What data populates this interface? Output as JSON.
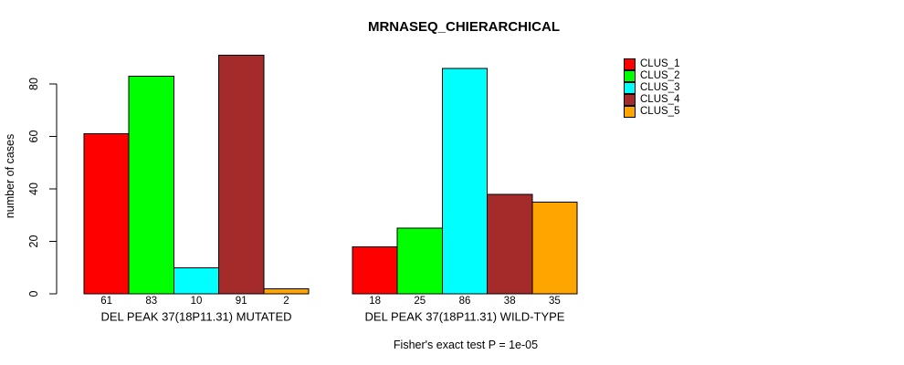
{
  "chart_data": {
    "type": "bar",
    "title": "MRNASEQ_CHIERARCHICAL",
    "ylabel": "number of cases",
    "xlabel": "",
    "ylim": [
      0,
      91
    ],
    "yticks": [
      0,
      20,
      40,
      60,
      80
    ],
    "grid": false,
    "legend_position": "right-outside",
    "bar_border_color": "#000000",
    "categories": [
      "DEL PEAK 37(18P11.31) MUTATED",
      "DEL PEAK 37(18P11.31) WILD-TYPE"
    ],
    "series": [
      {
        "name": "CLUS_1",
        "color": "#FF0000",
        "values": [
          61,
          18
        ]
      },
      {
        "name": "CLUS_2",
        "color": "#00FF00",
        "values": [
          83,
          25
        ]
      },
      {
        "name": "CLUS_3",
        "color": "#00FFFF",
        "values": [
          10,
          86
        ]
      },
      {
        "name": "CLUS_4",
        "color": "#A52A2A",
        "values": [
          91,
          38
        ]
      },
      {
        "name": "CLUS_5",
        "color": "#FFA500",
        "values": [
          2,
          35
        ]
      }
    ],
    "value_labels_shown": true,
    "footnote": "Fisher's exact test P = 1e-05"
  }
}
